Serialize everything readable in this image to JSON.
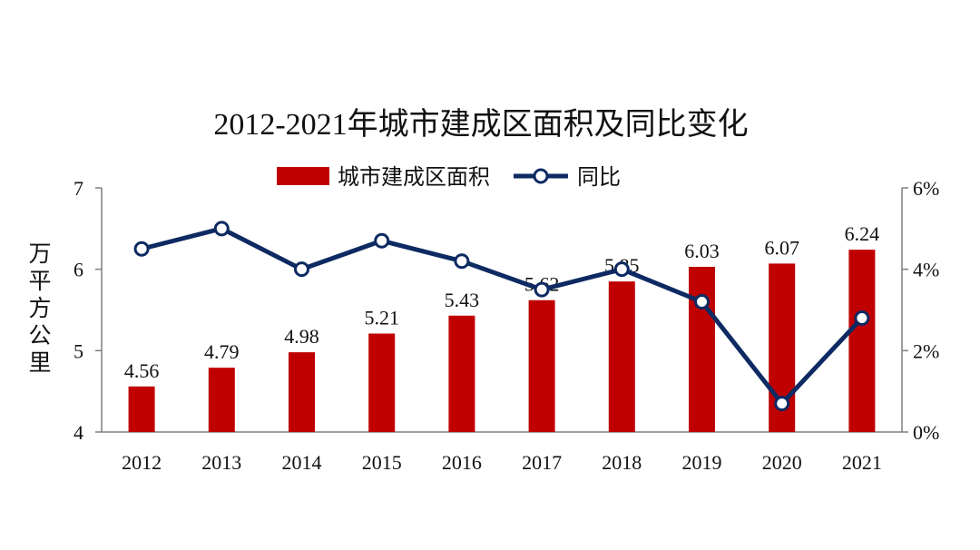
{
  "chart_data": {
    "type": "bar",
    "title": "2012-2021年城市建成区面积及同比变化",
    "categories": [
      "2012",
      "2013",
      "2014",
      "2015",
      "2016",
      "2017",
      "2018",
      "2019",
      "2020",
      "2021"
    ],
    "series": [
      {
        "name": "城市建成区面积",
        "type": "bar",
        "axis": "left",
        "values": [
          4.56,
          4.79,
          4.98,
          5.21,
          5.43,
          5.62,
          5.85,
          6.03,
          6.07,
          6.24
        ],
        "data_labels": [
          "4.56",
          "4.79",
          "4.98",
          "5.21",
          "5.43",
          "5.62",
          "5.85",
          "6.03",
          "6.07",
          "6.24"
        ],
        "color": "#c00000"
      },
      {
        "name": "同比",
        "type": "line",
        "axis": "right",
        "values": [
          4.5,
          5.0,
          4.0,
          4.7,
          4.2,
          3.5,
          4.0,
          3.2,
          0.7,
          2.8
        ],
        "color": "#0d2a63"
      }
    ],
    "ylabel": "万平方公里",
    "ylim": [
      4,
      7
    ],
    "y_ticks": [
      "4",
      "5",
      "6",
      "7"
    ],
    "y2lim": [
      0,
      6
    ],
    "y2_ticks": [
      "0%",
      "2%",
      "4%",
      "6%"
    ],
    "legend_position": "top-center",
    "grid": false
  }
}
